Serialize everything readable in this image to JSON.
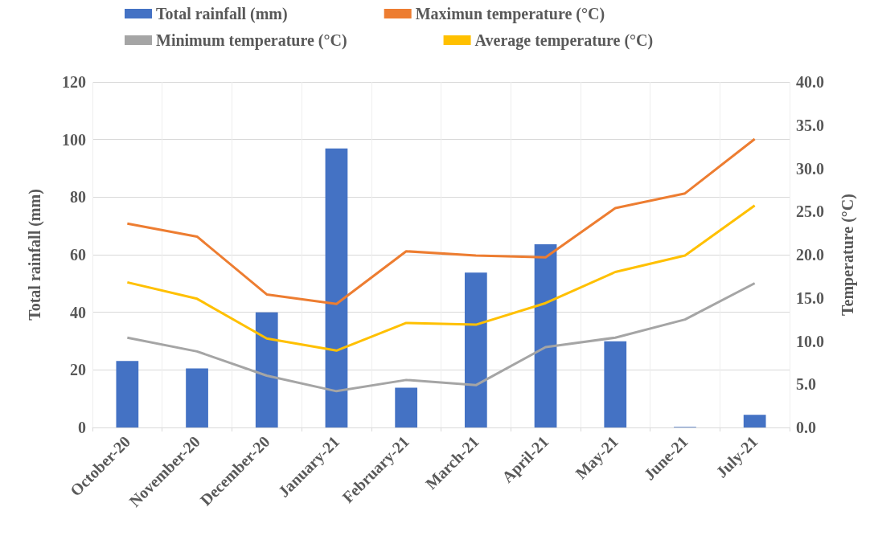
{
  "chart_data": {
    "type": "bar",
    "ylabel": "Total rainfall (mm)",
    "y2label": "Temperature (°C)",
    "categories": [
      "October-20",
      "November-20",
      "December-20",
      "January-21",
      "February-21",
      "March-21",
      "April-21",
      "May-21",
      "June-21",
      "July-21"
    ],
    "series": [
      {
        "name": "Total rainfall (mm)",
        "color": "#4472c4",
        "values": [
          23.1,
          20.5,
          40,
          96.9,
          13.8,
          53.8,
          63.6,
          29.9,
          0.2,
          4.4
        ]
      },
      {
        "name": "Maximun temperature (°C)",
        "type": "line",
        "axis": "y2",
        "color": "#ed7d31",
        "values": [
          23.6,
          22.1,
          15.4,
          14.3,
          20.4,
          19.9,
          19.7,
          25.4,
          27.1,
          33.4
        ]
      },
      {
        "name": "Minimum temperature (°C)",
        "type": "line",
        "axis": "y2",
        "color": "#a5a5a5",
        "values": [
          10.4,
          8.8,
          6.0,
          4.2,
          5.5,
          4.9,
          9.3,
          10.4,
          12.5,
          16.7
        ]
      },
      {
        "name": "Average temperature (°C)",
        "type": "line",
        "axis": "y2",
        "color": "#ffc000",
        "values": [
          16.8,
          14.9,
          10.3,
          8.9,
          12.1,
          11.9,
          14.4,
          18.0,
          19.9,
          25.7
        ]
      }
    ],
    "ylim": [
      0,
      120
    ],
    "yticks": [
      0,
      20,
      40,
      60,
      80,
      100,
      120
    ],
    "y2lim": [
      0,
      40
    ],
    "y2ticks": [
      {
        "value": 0,
        "label": "0.0"
      },
      {
        "value": 5,
        "label": "5.0"
      },
      {
        "value": 10,
        "label": "10.0"
      },
      {
        "value": 15,
        "label": "15.0"
      },
      {
        "value": 20,
        "label": "20.0"
      },
      {
        "value": 25,
        "label": "25.0"
      },
      {
        "value": 30,
        "label": "30.0"
      },
      {
        "value": 35,
        "label": "35.0"
      },
      {
        "value": 40,
        "label": "40.0"
      }
    ],
    "grid": true,
    "legend": "top",
    "marker": "none",
    "line_style": "solid"
  }
}
